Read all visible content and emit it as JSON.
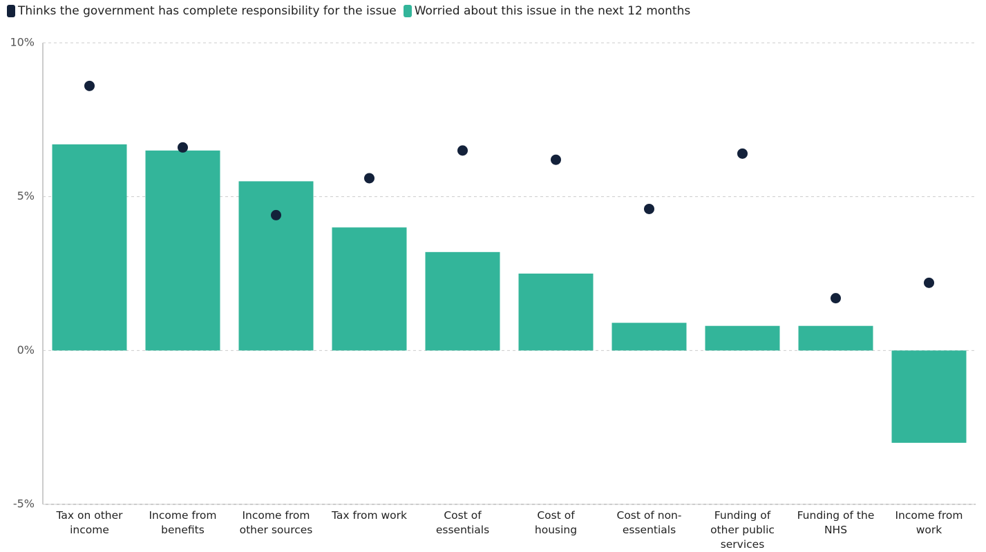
{
  "chart_data": {
    "type": "bar",
    "categories": [
      "Tax on other income",
      "Income from benefits",
      "Income from other sources",
      "Tax from work",
      "Cost of essentials",
      "Cost of housing",
      "Cost of non-essentials",
      "Funding of other public services",
      "Funding of the NHS",
      "Income from work"
    ],
    "series": [
      {
        "name": "Thinks the government has complete responsibility for the issue",
        "type": "scatter",
        "color": "#13213a",
        "values": [
          8.6,
          6.6,
          4.4,
          5.6,
          6.5,
          6.2,
          4.6,
          6.4,
          1.7,
          2.2
        ]
      },
      {
        "name": "Worried about this issue in the next 12 months",
        "type": "bar",
        "color": "#33b59a",
        "values": [
          6.7,
          6.5,
          5.5,
          4.0,
          3.2,
          2.5,
          0.9,
          0.8,
          0.8,
          -3.0
        ]
      }
    ],
    "ylim": [
      -5,
      10
    ],
    "yticks": [
      {
        "value": -5,
        "label": "-5%"
      },
      {
        "value": 0,
        "label": "0%"
      },
      {
        "value": 5,
        "label": "5%"
      },
      {
        "value": 10,
        "label": "10%"
      }
    ],
    "grid": true
  }
}
